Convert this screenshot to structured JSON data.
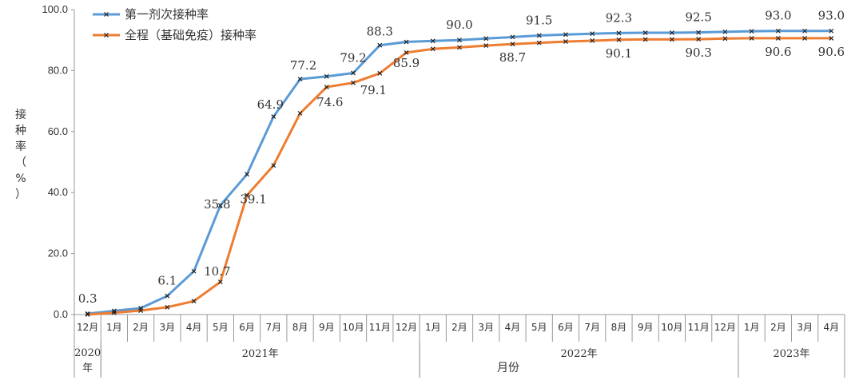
{
  "chart_data": {
    "type": "line",
    "categories": [
      "12月",
      "1月",
      "2月",
      "3月",
      "4月",
      "5月",
      "6月",
      "7月",
      "8月",
      "9月",
      "10月",
      "11月",
      "12月",
      "1月",
      "2月",
      "3月",
      "4月",
      "5月",
      "6月",
      "7月",
      "8月",
      "9月",
      "10月",
      "11月",
      "12月",
      "1月",
      "2月",
      "3月",
      "4月"
    ],
    "year_groups": [
      {
        "label": "2020年",
        "start": 0,
        "end": 0
      },
      {
        "label": "2021年",
        "start": 1,
        "end": 12
      },
      {
        "label": "2022年",
        "start": 13,
        "end": 24
      },
      {
        "label": "2023年",
        "start": 25,
        "end": 28
      }
    ],
    "series": [
      {
        "name": "第一剂次接种率",
        "color": "#5b9bd5",
        "values": [
          0.3,
          1.2,
          2.1,
          6.1,
          14.2,
          35.8,
          46.0,
          64.9,
          77.2,
          78.1,
          79.2,
          88.3,
          89.4,
          89.7,
          90.0,
          90.5,
          91.0,
          91.5,
          91.8,
          92.1,
          92.3,
          92.4,
          92.4,
          92.5,
          92.7,
          92.9,
          93.0,
          93.0,
          93.0
        ],
        "labels": [
          {
            "i": 0,
            "text": "0.3"
          },
          {
            "i": 3,
            "text": "6.1"
          },
          {
            "i": 5,
            "text": "35.8"
          },
          {
            "i": 7,
            "text": "64.9"
          },
          {
            "i": 8,
            "text": "77.2"
          },
          {
            "i": 10,
            "text": "79.2"
          },
          {
            "i": 11,
            "text": "88.3"
          },
          {
            "i": 14,
            "text": "90.0"
          },
          {
            "i": 17,
            "text": "91.5"
          },
          {
            "i": 20,
            "text": "92.3"
          },
          {
            "i": 23,
            "text": "92.5"
          },
          {
            "i": 26,
            "text": "93.0"
          },
          {
            "i": 28,
            "text": "93.0"
          }
        ]
      },
      {
        "name": "全程（基础免疫）接种率",
        "color": "#ed7d31",
        "values": [
          0.0,
          0.6,
          1.3,
          2.4,
          4.4,
          10.7,
          39.1,
          48.9,
          66.0,
          74.6,
          76.0,
          79.1,
          85.9,
          87.1,
          87.6,
          88.2,
          88.7,
          89.1,
          89.5,
          89.8,
          90.1,
          90.2,
          90.2,
          90.3,
          90.5,
          90.6,
          90.6,
          90.6,
          90.6
        ],
        "labels": [
          {
            "i": 5,
            "text": "10.7"
          },
          {
            "i": 6,
            "text": "39.1"
          },
          {
            "i": 9,
            "text": "74.6"
          },
          {
            "i": 11,
            "text": "79.1"
          },
          {
            "i": 12,
            "text": "85.9"
          },
          {
            "i": 16,
            "text": "88.7"
          },
          {
            "i": 20,
            "text": "90.1"
          },
          {
            "i": 23,
            "text": "90.3"
          },
          {
            "i": 26,
            "text": "90.6"
          },
          {
            "i": 28,
            "text": "90.6"
          }
        ]
      }
    ],
    "yticks": [
      "0.0",
      "20.0",
      "40.0",
      "60.0",
      "80.0",
      "100.0"
    ],
    "ylim": [
      0,
      100
    ],
    "ylabel": "接种率（%）",
    "xlabel": "月份",
    "legend_position": "top-left",
    "grid": false
  }
}
